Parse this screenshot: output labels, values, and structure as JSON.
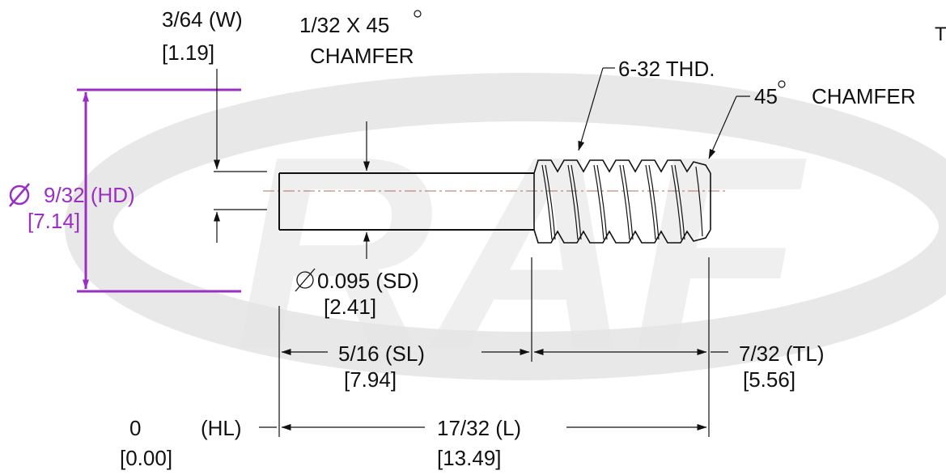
{
  "watermark": {
    "text": "RAF",
    "color": "#e6e6e6"
  },
  "colors": {
    "ink": "#111111",
    "accent": "#9b2fc4",
    "centerline": "#b07050"
  },
  "labels": {
    "width": "3/64  (W)",
    "width_mm": "[1.19]",
    "chamfer1_line1": "1/32 X 45",
    "chamfer1_line2": "CHAMFER",
    "thread": "6-32 THD.",
    "chamfer2_angle": "45",
    "chamfer2_text": "CHAMFER",
    "head_dia": "9/32 (HD)",
    "head_dia_mm": "[7.14]",
    "shank_dia": "0.095 (SD)",
    "shank_dia_mm": "[2.41]",
    "shank_len": "5/16  (SL)",
    "shank_len_mm": "[7.94]",
    "thread_len": "7/32  (TL)",
    "thread_len_mm": "[5.56]",
    "head_len": "0",
    "head_len_tag": "(HL)",
    "head_len_mm": "[0.00]",
    "overall_len": "17/32 (L)",
    "overall_len_mm": "[13.49]"
  },
  "icons": {
    "diameter": "diameter-symbol-icon",
    "degree": "degree-symbol-icon"
  }
}
